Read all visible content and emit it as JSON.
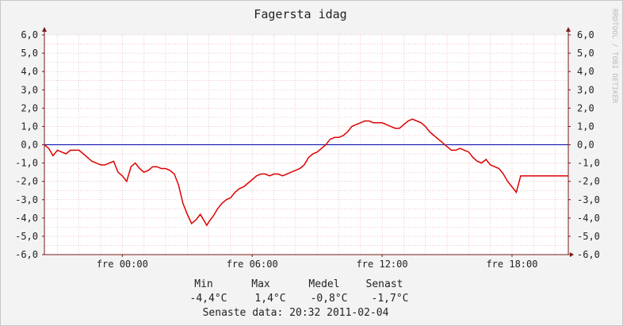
{
  "chart_data": {
    "type": "line",
    "title": "Fagersta idag",
    "watermark": "RRDTOOL / TOBI OETIKER",
    "y_ticks": [
      "6,0",
      "5,0",
      "4,0",
      "3,0",
      "2,0",
      "1,0",
      "0,0",
      "-1,0",
      "-2,0",
      "-3,0",
      "-4,0",
      "-5,0",
      "-6,0"
    ],
    "ylim": [
      -6,
      6
    ],
    "x_ticks": [
      {
        "label": "fre 00:00",
        "hour": 0
      },
      {
        "label": "fre 06:00",
        "hour": 6
      },
      {
        "label": "fre 12:00",
        "hour": 12
      },
      {
        "label": "fre 18:00",
        "hour": 18
      }
    ],
    "x_range_hours": [
      -3.6,
      20.6
    ],
    "grid": true,
    "colors": {
      "series": "#dd0000",
      "zero_line": "#0000aa",
      "grid": "#e8a0a0",
      "axis": "#7a1a1a"
    },
    "series": [
      {
        "x": [
          -3.6,
          -3.4,
          -3.2,
          -3.0,
          -2.8,
          -2.6,
          -2.4,
          -2.2,
          -2.0,
          -1.8,
          -1.6,
          -1.4,
          -1.2,
          -1.0,
          -0.8,
          -0.6,
          -0.4,
          -0.2,
          0.0,
          0.2,
          0.4,
          0.6,
          0.8,
          1.0,
          1.2,
          1.4,
          1.6,
          1.8,
          2.0,
          2.2,
          2.4,
          2.6,
          2.8,
          3.0,
          3.2,
          3.4,
          3.6,
          3.8,
          3.9,
          4.0,
          4.2,
          4.4,
          4.6,
          4.8,
          5.0,
          5.2,
          5.4,
          5.6,
          5.8,
          6.0,
          6.2,
          6.4,
          6.6,
          6.8,
          7.0,
          7.2,
          7.4,
          7.6,
          7.8,
          8.0,
          8.2,
          8.4,
          8.6,
          8.8,
          9.0,
          9.2,
          9.4,
          9.6,
          9.8,
          10.0,
          10.2,
          10.4,
          10.6,
          10.8,
          11.0,
          11.2,
          11.4,
          11.6,
          11.8,
          12.0,
          12.2,
          12.4,
          12.6,
          12.8,
          13.0,
          13.2,
          13.4,
          13.6,
          13.8,
          14.0,
          14.2,
          14.4,
          14.6,
          14.8,
          15.0,
          15.2,
          15.4,
          15.6,
          15.8,
          16.0,
          16.2,
          16.4,
          16.6,
          16.8,
          17.0,
          17.2,
          17.4,
          17.6,
          17.8,
          18.0,
          18.2,
          18.4,
          18.6,
          18.8,
          19.0,
          19.2,
          19.4,
          19.6,
          19.8,
          20.0,
          20.2,
          20.4,
          20.6
        ],
        "y": [
          0.0,
          -0.2,
          -0.6,
          -0.3,
          -0.4,
          -0.5,
          -0.3,
          -0.3,
          -0.3,
          -0.5,
          -0.7,
          -0.9,
          -1.0,
          -1.1,
          -1.1,
          -1.0,
          -0.9,
          -1.5,
          -1.7,
          -2.0,
          -1.2,
          -1.0,
          -1.3,
          -1.5,
          -1.4,
          -1.2,
          -1.2,
          -1.3,
          -1.3,
          -1.4,
          -1.6,
          -2.2,
          -3.2,
          -3.8,
          -4.3,
          -4.1,
          -3.8,
          -4.2,
          -4.4,
          -4.2,
          -3.9,
          -3.5,
          -3.2,
          -3.0,
          -2.9,
          -2.6,
          -2.4,
          -2.3,
          -2.1,
          -1.9,
          -1.7,
          -1.6,
          -1.6,
          -1.7,
          -1.6,
          -1.6,
          -1.7,
          -1.6,
          -1.5,
          -1.4,
          -1.3,
          -1.1,
          -0.7,
          -0.5,
          -0.4,
          -0.2,
          0.0,
          0.3,
          0.4,
          0.4,
          0.5,
          0.7,
          1.0,
          1.1,
          1.2,
          1.3,
          1.3,
          1.2,
          1.2,
          1.2,
          1.1,
          1.0,
          0.9,
          0.9,
          1.1,
          1.3,
          1.4,
          1.3,
          1.2,
          1.0,
          0.7,
          0.5,
          0.3,
          0.1,
          -0.1,
          -0.3,
          -0.3,
          -0.2,
          -0.3,
          -0.4,
          -0.7,
          -0.9,
          -1.0,
          -0.8,
          -1.1,
          -1.2,
          -1.3,
          -1.6,
          -2.0,
          -2.3,
          -2.6,
          -1.7,
          -1.7,
          -1.7,
          -1.7,
          -1.7,
          -1.7,
          -1.7,
          -1.7,
          -1.7,
          -1.7,
          -1.7,
          -1.7
        ]
      }
    ],
    "stats": {
      "headers": [
        "Min",
        "Max",
        "Medel",
        "Senast"
      ],
      "values": [
        "-4,4°C",
        "1,4°C",
        "-0,8°C",
        "-1,7°C"
      ]
    },
    "last_data": "Senaste data: 20:32 2011-02-04"
  }
}
